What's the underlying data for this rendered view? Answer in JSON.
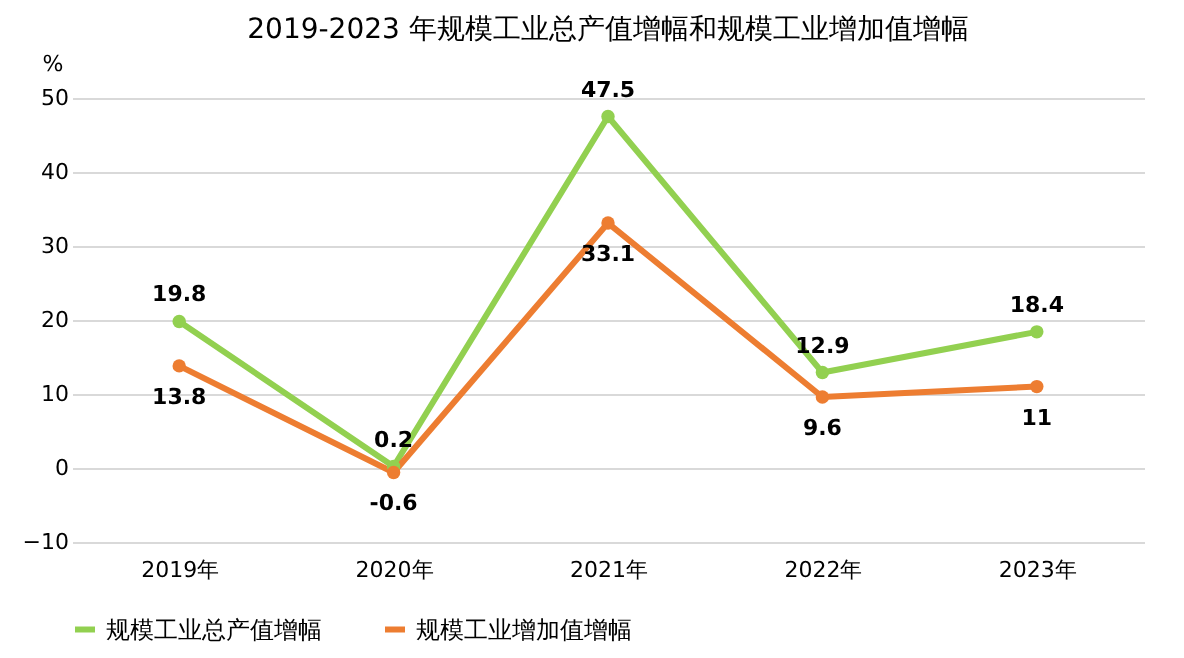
{
  "chart_data": {
    "type": "line",
    "title": "2019-2023 年规模工业总产值增幅和规模工业增加值增幅",
    "ylabel": "%",
    "categories": [
      "2019年",
      "2020年",
      "2021年",
      "2022年",
      "2023年"
    ],
    "series": [
      {
        "name": "规模工业总产值增幅",
        "color": "#92d050",
        "values": [
          19.8,
          0.2,
          47.5,
          12.9,
          18.4
        ]
      },
      {
        "name": "规模工业增加值增幅",
        "color": "#ed7d31",
        "values": [
          13.8,
          -0.6,
          33.1,
          9.6,
          11
        ]
      }
    ],
    "ylim": [
      -10,
      50
    ],
    "yticks": [
      -10,
      0,
      10,
      20,
      30,
      40,
      50
    ],
    "grid": "y",
    "legend": "bottom",
    "marker": "circle",
    "line_style": "solid",
    "data_labels": true
  }
}
